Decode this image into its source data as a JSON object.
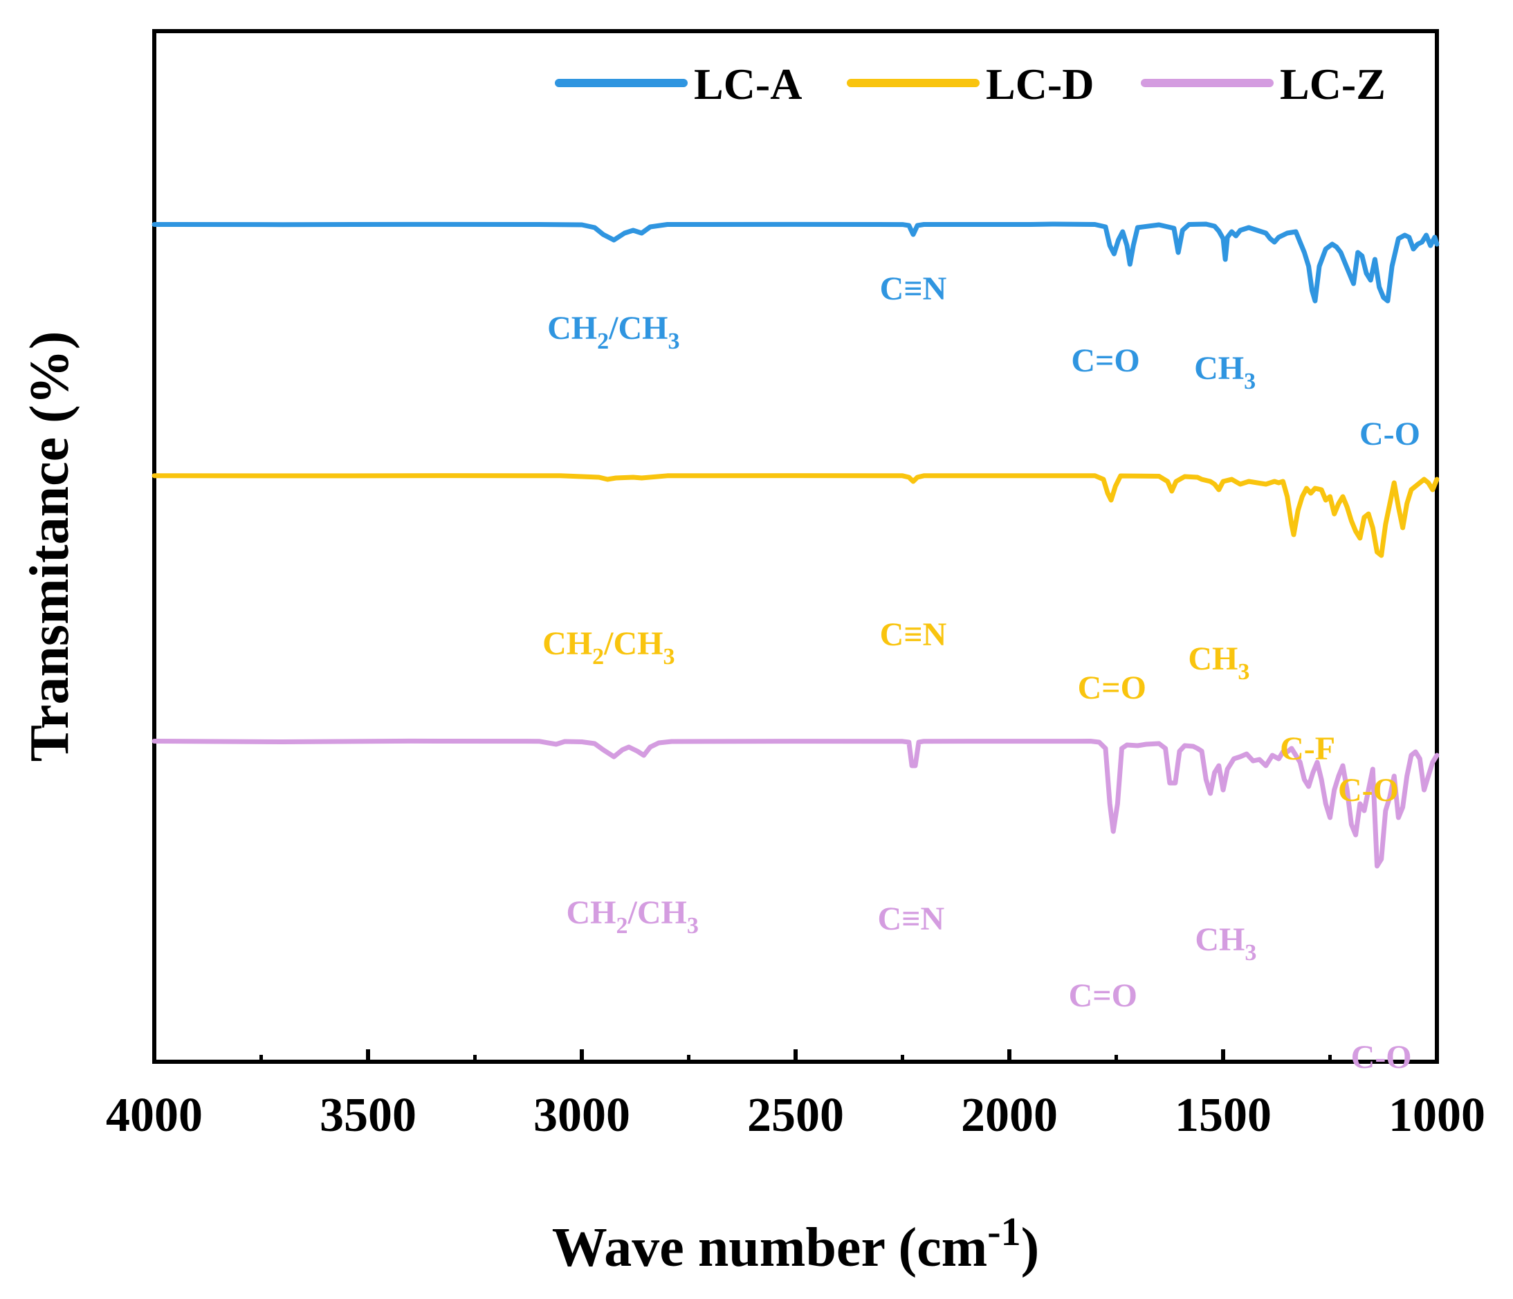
{
  "chart_data": {
    "type": "line",
    "xlabel": "Wave number (cm",
    "xlabel_sup": "-1",
    "xlabel_close": ")",
    "ylabel": "Transmitance (%)",
    "xlim": [
      4000,
      1000
    ],
    "x_reversed": true,
    "y_ticks_shown": false,
    "x_ticks": [
      {
        "value": 4000,
        "label": "4000"
      },
      {
        "value": 3500,
        "label": "3500"
      },
      {
        "value": 3000,
        "label": "3000"
      },
      {
        "value": 2500,
        "label": "2500"
      },
      {
        "value": 2000,
        "label": "2000"
      },
      {
        "value": 1500,
        "label": "1500"
      },
      {
        "value": 1000,
        "label": "1000"
      }
    ],
    "x_minor_ticks": [
      3750,
      3250,
      2750,
      2250,
      1750,
      1250
    ],
    "legend": {
      "placement": "top-right"
    },
    "grid": false,
    "offset_stacked": true,
    "y_units": "relative transmittance (stacked, arbitrary offset)",
    "series": [
      {
        "name": "LC-A",
        "color": "#2f95e0",
        "points": [
          [
            4000,
            0.5
          ],
          [
            3700,
            0.3
          ],
          [
            3400,
            0.6
          ],
          [
            3100,
            0.5
          ],
          [
            3000,
            0.0
          ],
          [
            2970,
            -4
          ],
          [
            2950,
            -14
          ],
          [
            2925,
            -22
          ],
          [
            2900,
            -12
          ],
          [
            2880,
            -8
          ],
          [
            2860,
            -12
          ],
          [
            2840,
            -3
          ],
          [
            2800,
            0.5
          ],
          [
            2500,
            0.6
          ],
          [
            2250,
            0.4
          ],
          [
            2235,
            -1
          ],
          [
            2225,
            -14
          ],
          [
            2215,
            -1
          ],
          [
            2200,
            0.5
          ],
          [
            1950,
            0.5
          ],
          [
            1900,
            1
          ],
          [
            1800,
            0.5
          ],
          [
            1775,
            -3
          ],
          [
            1765,
            -30
          ],
          [
            1755,
            -42
          ],
          [
            1745,
            -22
          ],
          [
            1735,
            -10
          ],
          [
            1725,
            -30
          ],
          [
            1718,
            -57
          ],
          [
            1710,
            -30
          ],
          [
            1700,
            -4
          ],
          [
            1650,
            0
          ],
          [
            1615,
            -5
          ],
          [
            1605,
            -40
          ],
          [
            1595,
            -8
          ],
          [
            1580,
            0.5
          ],
          [
            1540,
            1
          ],
          [
            1520,
            -2
          ],
          [
            1510,
            -9
          ],
          [
            1500,
            -20
          ],
          [
            1495,
            -50
          ],
          [
            1490,
            -18
          ],
          [
            1480,
            -10
          ],
          [
            1470,
            -16
          ],
          [
            1460,
            -8
          ],
          [
            1440,
            -4
          ],
          [
            1420,
            -8
          ],
          [
            1400,
            -12
          ],
          [
            1390,
            -20
          ],
          [
            1380,
            -25
          ],
          [
            1370,
            -18
          ],
          [
            1350,
            -12
          ],
          [
            1330,
            -10
          ],
          [
            1320,
            -25
          ],
          [
            1310,
            -40
          ],
          [
            1300,
            -60
          ],
          [
            1292,
            -95
          ],
          [
            1285,
            -110
          ],
          [
            1275,
            -60
          ],
          [
            1260,
            -35
          ],
          [
            1245,
            -28
          ],
          [
            1235,
            -32
          ],
          [
            1225,
            -40
          ],
          [
            1215,
            -55
          ],
          [
            1205,
            -70
          ],
          [
            1195,
            -85
          ],
          [
            1185,
            -40
          ],
          [
            1175,
            -45
          ],
          [
            1165,
            -70
          ],
          [
            1155,
            -80
          ],
          [
            1145,
            -50
          ],
          [
            1135,
            -90
          ],
          [
            1125,
            -105
          ],
          [
            1115,
            -110
          ],
          [
            1105,
            -60
          ],
          [
            1090,
            -20
          ],
          [
            1075,
            -15
          ],
          [
            1065,
            -18
          ],
          [
            1055,
            -35
          ],
          [
            1045,
            -28
          ],
          [
            1035,
            -25
          ],
          [
            1025,
            -15
          ],
          [
            1015,
            -30
          ],
          [
            1005,
            -18
          ],
          [
            1000,
            -28
          ]
        ]
      },
      {
        "name": "LC-D",
        "color": "#f9c40e",
        "points": [
          [
            4000,
            0.3
          ],
          [
            3600,
            0.1
          ],
          [
            3300,
            0.4
          ],
          [
            3050,
            0.2
          ],
          [
            2960,
            -2
          ],
          [
            2940,
            -5
          ],
          [
            2920,
            -3
          ],
          [
            2880,
            -2
          ],
          [
            2860,
            -3
          ],
          [
            2800,
            0.2
          ],
          [
            2500,
            0.4
          ],
          [
            2250,
            0.2
          ],
          [
            2235,
            -2
          ],
          [
            2225,
            -8
          ],
          [
            2215,
            -2
          ],
          [
            2200,
            0.2
          ],
          [
            1800,
            0.3
          ],
          [
            1780,
            -5
          ],
          [
            1770,
            -25
          ],
          [
            1762,
            -35
          ],
          [
            1752,
            -15
          ],
          [
            1740,
            0
          ],
          [
            1650,
            -0.5
          ],
          [
            1630,
            -8
          ],
          [
            1620,
            -22
          ],
          [
            1610,
            -8
          ],
          [
            1590,
            -1
          ],
          [
            1560,
            -2
          ],
          [
            1550,
            -5
          ],
          [
            1530,
            -8
          ],
          [
            1520,
            -12
          ],
          [
            1510,
            -20
          ],
          [
            1500,
            -8
          ],
          [
            1480,
            -5
          ],
          [
            1460,
            -12
          ],
          [
            1440,
            -8
          ],
          [
            1420,
            -10
          ],
          [
            1400,
            -12
          ],
          [
            1380,
            -8
          ],
          [
            1370,
            -10
          ],
          [
            1360,
            -8
          ],
          [
            1350,
            -30
          ],
          [
            1340,
            -70
          ],
          [
            1335,
            -85
          ],
          [
            1325,
            -50
          ],
          [
            1315,
            -30
          ],
          [
            1305,
            -18
          ],
          [
            1295,
            -25
          ],
          [
            1285,
            -18
          ],
          [
            1270,
            -20
          ],
          [
            1260,
            -35
          ],
          [
            1250,
            -30
          ],
          [
            1240,
            -55
          ],
          [
            1230,
            -40
          ],
          [
            1220,
            -30
          ],
          [
            1210,
            -45
          ],
          [
            1200,
            -65
          ],
          [
            1190,
            -80
          ],
          [
            1180,
            -90
          ],
          [
            1170,
            -60
          ],
          [
            1160,
            -55
          ],
          [
            1150,
            -75
          ],
          [
            1140,
            -110
          ],
          [
            1130,
            -115
          ],
          [
            1120,
            -70
          ],
          [
            1110,
            -40
          ],
          [
            1100,
            -10
          ],
          [
            1090,
            -45
          ],
          [
            1080,
            -75
          ],
          [
            1070,
            -40
          ],
          [
            1060,
            -20
          ],
          [
            1050,
            -15
          ],
          [
            1040,
            -10
          ],
          [
            1030,
            -5
          ],
          [
            1020,
            -10
          ],
          [
            1010,
            -20
          ],
          [
            1000,
            -5
          ]
        ]
      },
      {
        "name": "LC-Z",
        "color": "#d49ce0",
        "points": [
          [
            4000,
            0.5
          ],
          [
            3700,
            -0.5
          ],
          [
            3400,
            0.6
          ],
          [
            3100,
            0.3
          ],
          [
            3060,
            -4
          ],
          [
            3040,
            0
          ],
          [
            3000,
            -0.5
          ],
          [
            2970,
            -3
          ],
          [
            2950,
            -12
          ],
          [
            2925,
            -22
          ],
          [
            2905,
            -12
          ],
          [
            2890,
            -8
          ],
          [
            2870,
            -14
          ],
          [
            2855,
            -20
          ],
          [
            2840,
            -8
          ],
          [
            2820,
            -2
          ],
          [
            2790,
            0
          ],
          [
            2500,
            0.4
          ],
          [
            2250,
            0.2
          ],
          [
            2235,
            -1
          ],
          [
            2228,
            -35
          ],
          [
            2220,
            -35
          ],
          [
            2212,
            -1
          ],
          [
            2200,
            0.3
          ],
          [
            1850,
            0.4
          ],
          [
            1810,
            0.5
          ],
          [
            1790,
            -1
          ],
          [
            1775,
            -10
          ],
          [
            1765,
            -90
          ],
          [
            1757,
            -130
          ],
          [
            1747,
            -90
          ],
          [
            1737,
            -10
          ],
          [
            1725,
            -5
          ],
          [
            1700,
            -6
          ],
          [
            1680,
            -4
          ],
          [
            1650,
            -3
          ],
          [
            1635,
            -10
          ],
          [
            1625,
            -60
          ],
          [
            1612,
            -60
          ],
          [
            1602,
            -14
          ],
          [
            1590,
            -6
          ],
          [
            1570,
            -7
          ],
          [
            1560,
            -10
          ],
          [
            1550,
            -14
          ],
          [
            1540,
            -55
          ],
          [
            1530,
            -75
          ],
          [
            1520,
            -45
          ],
          [
            1510,
            -35
          ],
          [
            1500,
            -70
          ],
          [
            1490,
            -40
          ],
          [
            1475,
            -25
          ],
          [
            1460,
            -22
          ],
          [
            1445,
            -18
          ],
          [
            1430,
            -28
          ],
          [
            1415,
            -26
          ],
          [
            1400,
            -35
          ],
          [
            1385,
            -20
          ],
          [
            1370,
            -25
          ],
          [
            1360,
            -15
          ],
          [
            1350,
            -15
          ],
          [
            1340,
            -10
          ],
          [
            1330,
            -20
          ],
          [
            1320,
            -30
          ],
          [
            1310,
            -55
          ],
          [
            1300,
            -65
          ],
          [
            1290,
            -45
          ],
          [
            1280,
            -30
          ],
          [
            1270,
            -55
          ],
          [
            1260,
            -90
          ],
          [
            1250,
            -110
          ],
          [
            1240,
            -70
          ],
          [
            1230,
            -50
          ],
          [
            1220,
            -35
          ],
          [
            1210,
            -70
          ],
          [
            1200,
            -120
          ],
          [
            1190,
            -135
          ],
          [
            1180,
            -90
          ],
          [
            1170,
            -100
          ],
          [
            1160,
            -70
          ],
          [
            1150,
            -40
          ],
          [
            1140,
            -180
          ],
          [
            1130,
            -170
          ],
          [
            1120,
            -100
          ],
          [
            1110,
            -80
          ],
          [
            1100,
            -50
          ],
          [
            1090,
            -110
          ],
          [
            1080,
            -95
          ],
          [
            1070,
            -50
          ],
          [
            1060,
            -20
          ],
          [
            1050,
            -15
          ],
          [
            1040,
            -25
          ],
          [
            1030,
            -70
          ],
          [
            1020,
            -50
          ],
          [
            1010,
            -30
          ],
          [
            1000,
            -20
          ]
        ]
      }
    ],
    "annotations": [
      {
        "series": "LC-A",
        "text": "C≡N",
        "wavenumber": 2225
      },
      {
        "series": "LC-A",
        "text": "C=O",
        "wavenumber": 1775
      },
      {
        "series": "LC-A",
        "text": "C-O",
        "wavenumber": 1110
      },
      {
        "series": "LC-A",
        "parts": [
          "CH",
          "2",
          "/CH",
          "3"
        ],
        "wavenumber": 2900
      },
      {
        "series": "LC-A",
        "parts": [
          "CH",
          "3"
        ],
        "wavenumber": 1520
      },
      {
        "series": "LC-D",
        "text": "C≡N",
        "wavenumber": 2225
      },
      {
        "series": "LC-D",
        "text": "C=O",
        "wavenumber": 1760
      },
      {
        "series": "LC-D",
        "text": "C-F",
        "wavenumber": 1270
      },
      {
        "series": "LC-D",
        "text": "C-O",
        "wavenumber": 1115
      },
      {
        "series": "LC-D",
        "parts": [
          "CH",
          "2",
          "/CH",
          "3"
        ],
        "wavenumber": 2900
      },
      {
        "series": "LC-D",
        "parts": [
          "CH",
          "3"
        ],
        "wavenumber": 1510
      },
      {
        "series": "LC-Z",
        "text": "C≡N",
        "wavenumber": 2230
      },
      {
        "series": "LC-Z",
        "text": "C=O",
        "wavenumber": 1760
      },
      {
        "series": "LC-Z",
        "text": "C-O",
        "wavenumber": 1130
      },
      {
        "series": "LC-Z",
        "parts": [
          "CH",
          "2",
          "/CH",
          "3"
        ],
        "wavenumber": 2880
      },
      {
        "series": "LC-Z",
        "parts": [
          "CH",
          "3"
        ],
        "wavenumber": 1510
      }
    ]
  }
}
